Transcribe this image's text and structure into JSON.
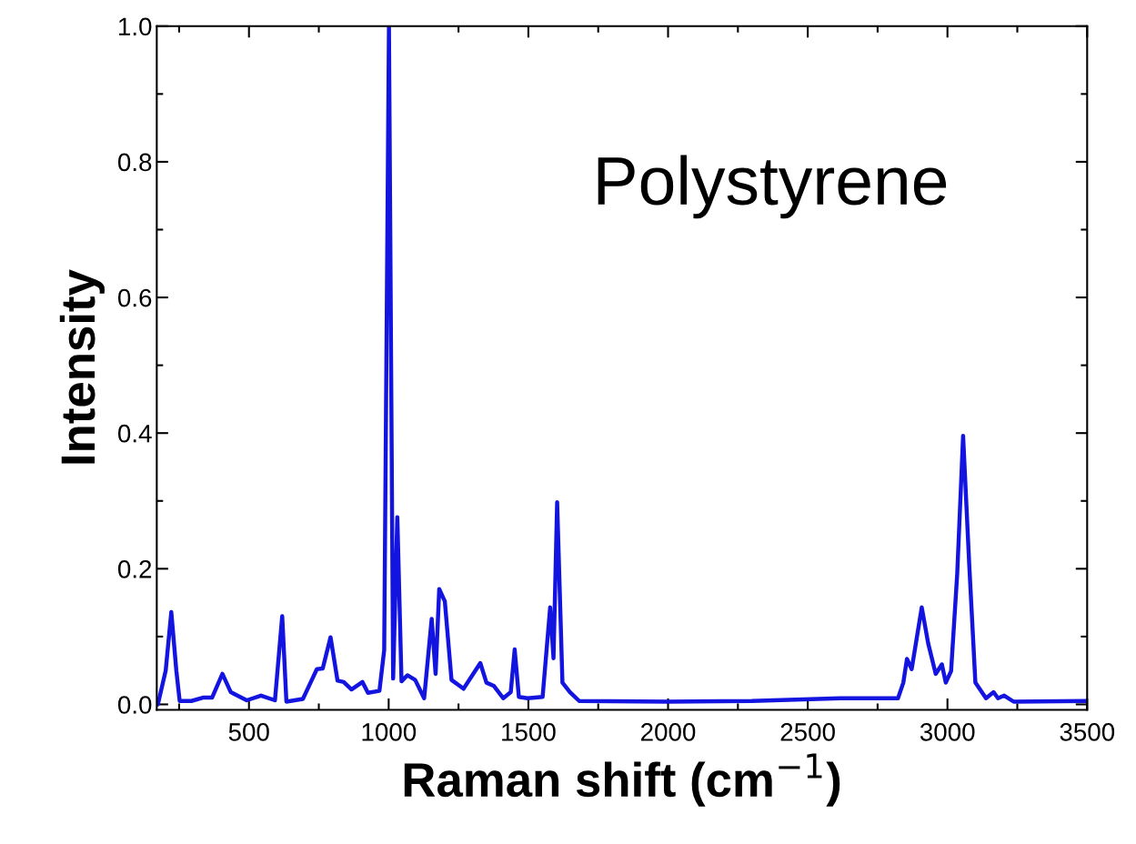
{
  "chart_data": {
    "type": "line",
    "xlabel": "Raman shift (cm$^{−1}$)",
    "ylabel": "Intensity",
    "annotations": [
      "Polystyrene"
    ],
    "x": [
      174,
      202,
      222,
      240,
      252,
      294,
      335,
      368,
      405,
      435,
      492,
      543,
      593,
      619,
      634,
      693,
      743,
      764,
      792,
      817,
      839,
      867,
      906,
      926,
      967,
      984,
      1001,
      1016,
      1031,
      1046,
      1067,
      1095,
      1127,
      1154,
      1168,
      1181,
      1201,
      1225,
      1268,
      1328,
      1350,
      1377,
      1410,
      1437,
      1451,
      1466,
      1497,
      1551,
      1578,
      1590,
      1603,
      1622,
      1649,
      1682,
      2000,
      2300,
      2616,
      2823,
      2842,
      2855,
      2872,
      2908,
      2931,
      2958,
      2980,
      2994,
      3013,
      3035,
      3056,
      3078,
      3100,
      3138,
      3165,
      3181,
      3203,
      3237,
      3500
    ],
    "series": [
      {
        "color": "#1414e0",
        "values": [
          0.0,
          0.05,
          0.136,
          0.05,
          0.005,
          0.005,
          0.01,
          0.01,
          0.045,
          0.018,
          0.006,
          0.013,
          0.006,
          0.13,
          0.004,
          0.008,
          0.052,
          0.053,
          0.099,
          0.035,
          0.033,
          0.022,
          0.033,
          0.017,
          0.02,
          0.08,
          1.0,
          0.038,
          0.276,
          0.034,
          0.043,
          0.036,
          0.009,
          0.126,
          0.045,
          0.17,
          0.152,
          0.036,
          0.023,
          0.061,
          0.032,
          0.027,
          0.009,
          0.018,
          0.081,
          0.011,
          0.009,
          0.011,
          0.143,
          0.068,
          0.298,
          0.032,
          0.018,
          0.005,
          0.004,
          0.005,
          0.009,
          0.009,
          0.032,
          0.067,
          0.052,
          0.143,
          0.09,
          0.045,
          0.059,
          0.032,
          0.049,
          0.193,
          0.396,
          0.206,
          0.032,
          0.009,
          0.018,
          0.009,
          0.013,
          0.004,
          0.005
        ]
      }
    ],
    "xlim": [
      170,
      3500
    ],
    "ylim": [
      -0.008,
      1.0
    ],
    "xticks": [
      {
        "value": 250,
        "label": null
      },
      500,
      {
        "value": 750,
        "label": null
      },
      1000,
      {
        "value": 1250,
        "label": null
      },
      1500,
      {
        "value": 1750,
        "label": null
      },
      2000,
      {
        "value": 2250,
        "label": null
      },
      2500,
      {
        "value": 2750,
        "label": null
      },
      3000,
      {
        "value": 3250,
        "label": null
      },
      3500
    ],
    "yticks": [
      {
        "value": 0,
        "label": "0.0"
      },
      {
        "value": 0.1,
        "label": null
      },
      0.2,
      {
        "value": 0.3,
        "label": null
      },
      0.4,
      {
        "value": 0.5,
        "label": null
      },
      0.6,
      {
        "value": 0.7,
        "label": null
      },
      0.8,
      {
        "value": 0.9,
        "label": null
      },
      {
        "value": 1,
        "label": "1.0"
      }
    ],
    "grid": false
  }
}
